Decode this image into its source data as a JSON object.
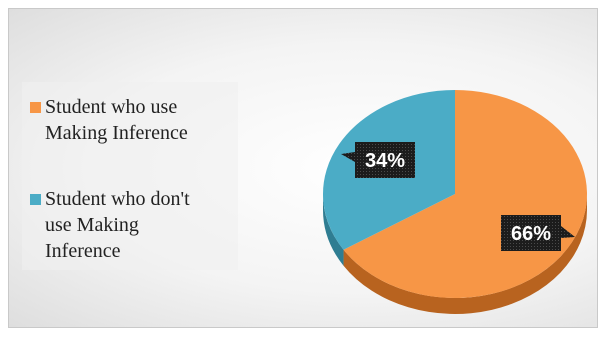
{
  "chart_data": {
    "type": "pie",
    "title": "",
    "style": "3d",
    "legend_position": "left",
    "labels": [
      "Student who use Making Inference",
      "Student who don't use Making Inference"
    ],
    "values": [
      66,
      34
    ],
    "data_labels": [
      "66%",
      "34%"
    ],
    "colors": [
      "#f79646",
      "#4bacc6"
    ],
    "side_colors": [
      "#b8631f",
      "#2f7d92"
    ]
  }
}
